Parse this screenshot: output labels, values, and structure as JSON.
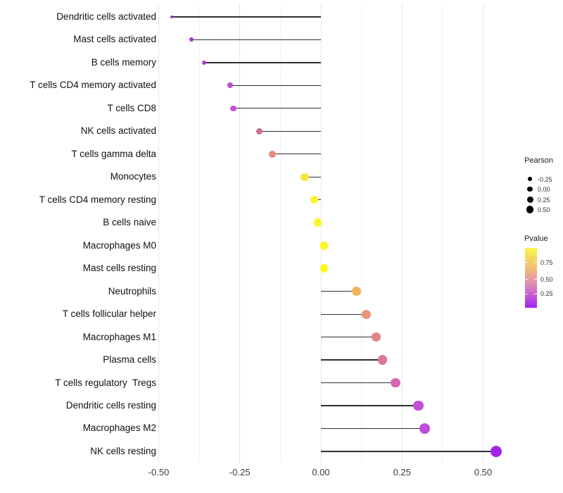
{
  "chart_data": {
    "type": "scatter",
    "variant": "lollipop",
    "orientation": "horizontal",
    "title": "",
    "xlabel": "",
    "ylabel": "",
    "grid": "vertical-only",
    "baseline": 0,
    "xlim": [
      -0.5,
      0.55
    ],
    "x_ticks": [
      -0.5,
      -0.25,
      0,
      0.25,
      0.5
    ],
    "x_tick_labels": [
      "-0.50",
      "-0.25",
      "0.00",
      "0.25",
      "0.50"
    ],
    "stem_color": "#2f2f2f",
    "categories": [
      "Dendritic cells activated",
      "Mast cells activated",
      "B cells memory",
      "T cells CD4 memory activated",
      "T cells CD8",
      "NK cells activated",
      "T cells gamma delta",
      "Monocytes",
      "T cells CD4 memory resting",
      "B cells naive",
      "Macrophages M0",
      "Mast cells resting",
      "Neutrophils",
      "T cells follicular helper",
      "Macrophages M1",
      "Plasma cells",
      "T cells regulatory  Tregs",
      "Dendritic cells resting",
      "Macrophages M2",
      "NK cells resting"
    ],
    "series": [
      {
        "name": "Pearson",
        "values": [
          -0.46,
          -0.4,
          -0.36,
          -0.28,
          -0.27,
          -0.19,
          -0.15,
          -0.05,
          -0.02,
          -0.01,
          0.01,
          0.01,
          0.11,
          0.14,
          0.17,
          0.19,
          0.23,
          0.3,
          0.32,
          0.54
        ]
      }
    ],
    "point_colors": [
      "#9e30d5",
      "#a637d3",
      "#aa3cd1",
      "#b850cf",
      "#bc57cc",
      "#d06f93",
      "#e28a7d",
      "#f3e73b",
      "#fcf32a",
      "#fcf32a",
      "#fdf818",
      "#fdf818",
      "#f0b25e",
      "#e9957a",
      "#e28488",
      "#dc75a2",
      "#d268b2",
      "#c24fd7",
      "#c04dd7",
      "#a424ec"
    ],
    "legend": {
      "position": "right",
      "size": {
        "title": "Pearson",
        "labels": [
          "-0.25",
          "0.00",
          "0.25",
          "0.50"
        ],
        "values": [
          -0.25,
          0,
          0.25,
          0.5
        ],
        "dot_color": "#000000"
      },
      "color": {
        "title": "Pvalue",
        "labels": [
          "0.75",
          "0.50",
          "0.25"
        ],
        "gradient_top_to_bottom": [
          "#fdf64d",
          "#f6dc5a",
          "#eeb484",
          "#e295ab",
          "#d06fc6",
          "#b542e2",
          "#a322f0"
        ]
      }
    }
  }
}
